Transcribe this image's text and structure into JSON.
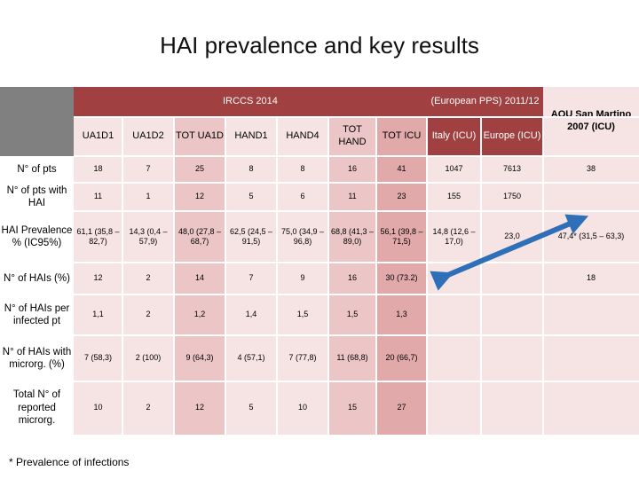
{
  "title": "HAI prevalence and key results",
  "header": {
    "irccs": "IRCCS 2014",
    "european": "(European PPS) 2011/12",
    "aou": "AOU San Martino 2007 (ICU)",
    "cols": [
      "UA1D1",
      "UA1D2",
      "TOT UA1D",
      "HAND1",
      "HAND4",
      "TOT HAND",
      "TOT ICU",
      "Italy (ICU)",
      "Europe (ICU)"
    ]
  },
  "rows": [
    {
      "label": "N° of pts",
      "cells": [
        "18",
        "7",
        "25",
        "8",
        "8",
        "16",
        "41",
        "1047",
        "7613",
        "38"
      ]
    },
    {
      "label": "N° of pts with HAI",
      "cells": [
        "11",
        "1",
        "12",
        "5",
        "6",
        "11",
        "23",
        "155",
        "1750",
        ""
      ]
    },
    {
      "label": "HAI Prevalence % (IC95%)",
      "cells": [
        "61,1 (35,8 – 82,7)",
        "14,3 (0,4 – 57,9)",
        "48,0 (27,8 – 68,7)",
        "62,5 (24,5 – 91,5)",
        "75,0 (34,9 – 96,8)",
        "68,8 (41,3 – 89,0)",
        "56,1 (39,8 – 71,5)",
        "14,8 (12,6 – 17,0)",
        "23,0",
        "47,4* (31,5 – 63,3)"
      ]
    },
    {
      "label": "N° of HAIs (%)",
      "cells": [
        "12",
        "2",
        "14",
        "7",
        "9",
        "16",
        "30 (73.2)",
        "",
        "",
        "18"
      ]
    },
    {
      "label": "N° of HAIs per infected pt",
      "cells": [
        "1,1",
        "2",
        "1,2",
        "1,4",
        "1,5",
        "1,5",
        "1,3",
        "",
        "",
        ""
      ]
    },
    {
      "label": "N° of HAIs with microrg. (%)",
      "cells": [
        "7 (58,3)",
        "2 (100)",
        "9 (64,3)",
        "4 (57,1)",
        "7 (77,8)",
        "11 (68,8)",
        "20 (66,7)",
        "",
        "",
        ""
      ]
    },
    {
      "label": "Total N° of reported microrg.",
      "cells": [
        "10",
        "2",
        "12",
        "5",
        "10",
        "15",
        "27",
        "",
        "",
        ""
      ]
    }
  ],
  "footnote": "* Prevalence of infections",
  "colors": {
    "irccs_bar": "#a04040",
    "light": "#f6e4e4",
    "medium": "#ecc6c6",
    "dark": "#e1a9a9",
    "label_grey": "#808080",
    "arrow": "#2e6fb8"
  }
}
